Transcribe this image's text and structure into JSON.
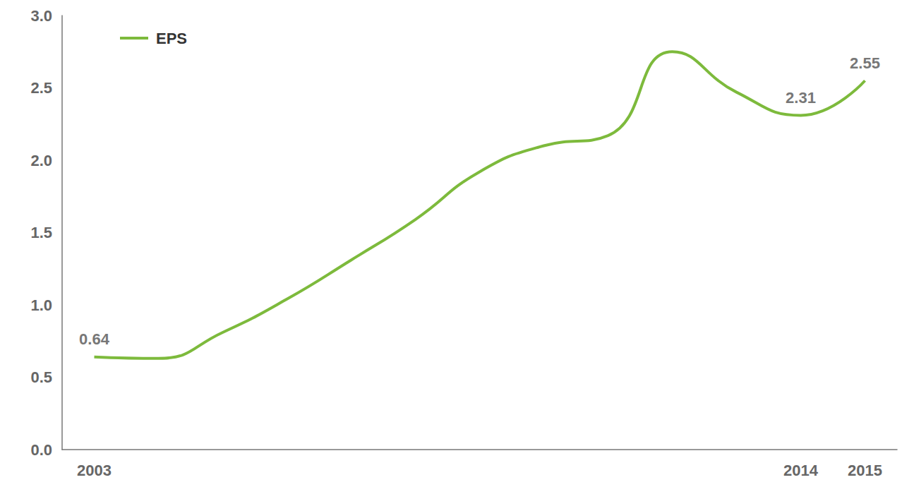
{
  "chart_data": {
    "type": "line",
    "categories": [
      "2003",
      null,
      null,
      null,
      null,
      null,
      null,
      null,
      null,
      null,
      null,
      "2014",
      "2015"
    ],
    "series": [
      {
        "name": "EPS",
        "color": "#7dba3c",
        "values": [
          0.64,
          0.63,
          0.81,
          1.04,
          1.31,
          1.59,
          1.92,
          2.1,
          2.17,
          2.75,
          2.47,
          2.31,
          2.55
        ],
        "value_labels": [
          "0.64",
          null,
          null,
          null,
          null,
          null,
          null,
          null,
          null,
          null,
          null,
          "2.31",
          "2.55"
        ]
      }
    ],
    "ylim": [
      0,
      3
    ],
    "yticks": [
      {
        "value": 0,
        "label": "0.0"
      },
      0.5,
      {
        "value": 1,
        "label": "1.0"
      },
      1.5,
      {
        "value": 2,
        "label": "2.0"
      },
      2.5,
      {
        "value": 3,
        "label": "3.0"
      }
    ],
    "grid": false,
    "legend": "top-left",
    "data_labels": true
  }
}
